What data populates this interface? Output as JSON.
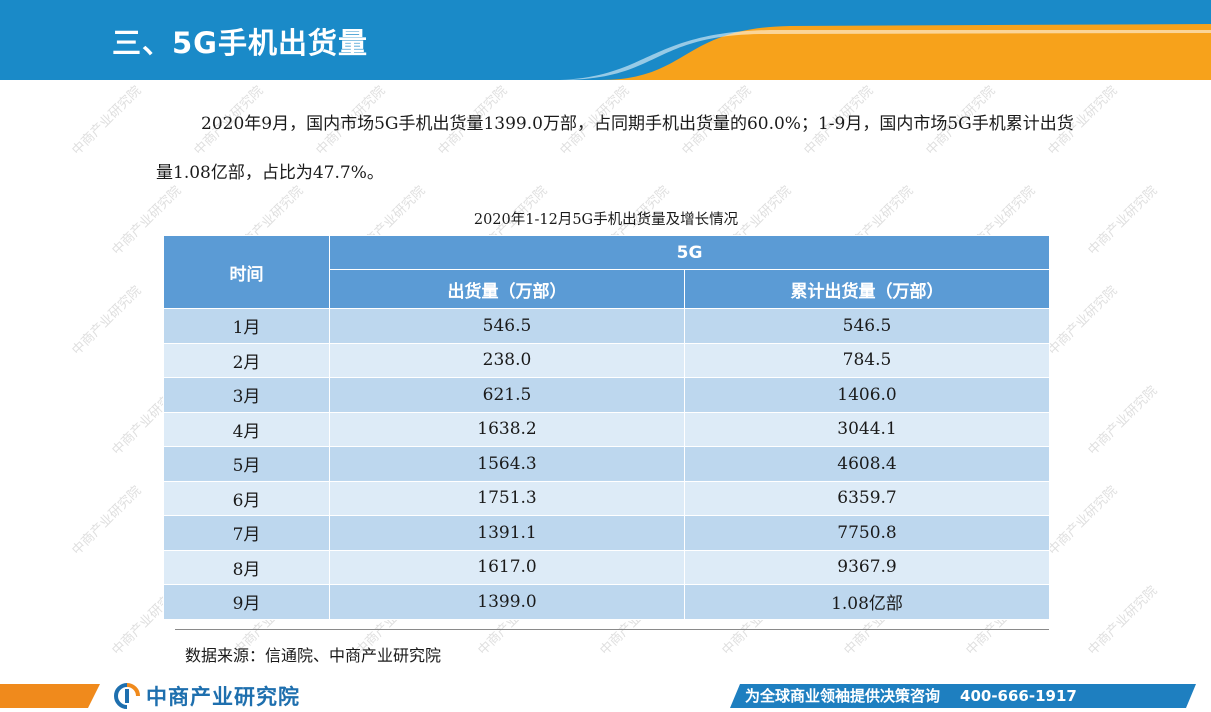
{
  "header": {
    "title": "三、5G手机出货量"
  },
  "intro": {
    "text": "2020年9月，国内市场5G手机出货量1399.0万部，占同期手机出货量的60.0%；1-9月，国内市场5G手机累计出货量1.08亿部，占比为47.7%。"
  },
  "table": {
    "title": "2020年1-12月5G手机出货量及增长情况",
    "col_time": "时间",
    "group_label": "5G",
    "col_shipments": "出货量（万部）",
    "col_cumulative": "累计出货量（万部）",
    "rows": [
      {
        "month": "1月",
        "shipments": "546.5",
        "cumulative": "546.5"
      },
      {
        "month": "2月",
        "shipments": "238.0",
        "cumulative": "784.5"
      },
      {
        "month": "3月",
        "shipments": "621.5",
        "cumulative": "1406.0"
      },
      {
        "month": "4月",
        "shipments": "1638.2",
        "cumulative": "3044.1"
      },
      {
        "month": "5月",
        "shipments": "1564.3",
        "cumulative": "4608.4"
      },
      {
        "month": "6月",
        "shipments": "1751.3",
        "cumulative": "6359.7"
      },
      {
        "month": "7月",
        "shipments": "1391.1",
        "cumulative": "7750.8"
      },
      {
        "month": "8月",
        "shipments": "1617.0",
        "cumulative": "9367.9"
      },
      {
        "month": "9月",
        "shipments": "1399.0",
        "cumulative": "1.08亿部"
      }
    ]
  },
  "source": "数据来源：信通院、中商产业研究院",
  "watermark": "中商产业研究院",
  "footer": {
    "logo_text": "中商产业研究院",
    "slogan": "为全球商业领袖提供决策咨询",
    "phone": "400-666-1917"
  },
  "colors": {
    "header_blue": "#1a8ac8",
    "accent_orange": "#f7a21b",
    "table_header": "#5b9bd5",
    "row_dark": "#bdd7ee",
    "row_light": "#ddebf7",
    "footer_blue": "#1e7fc0",
    "logo_blue": "#1e6fae"
  }
}
